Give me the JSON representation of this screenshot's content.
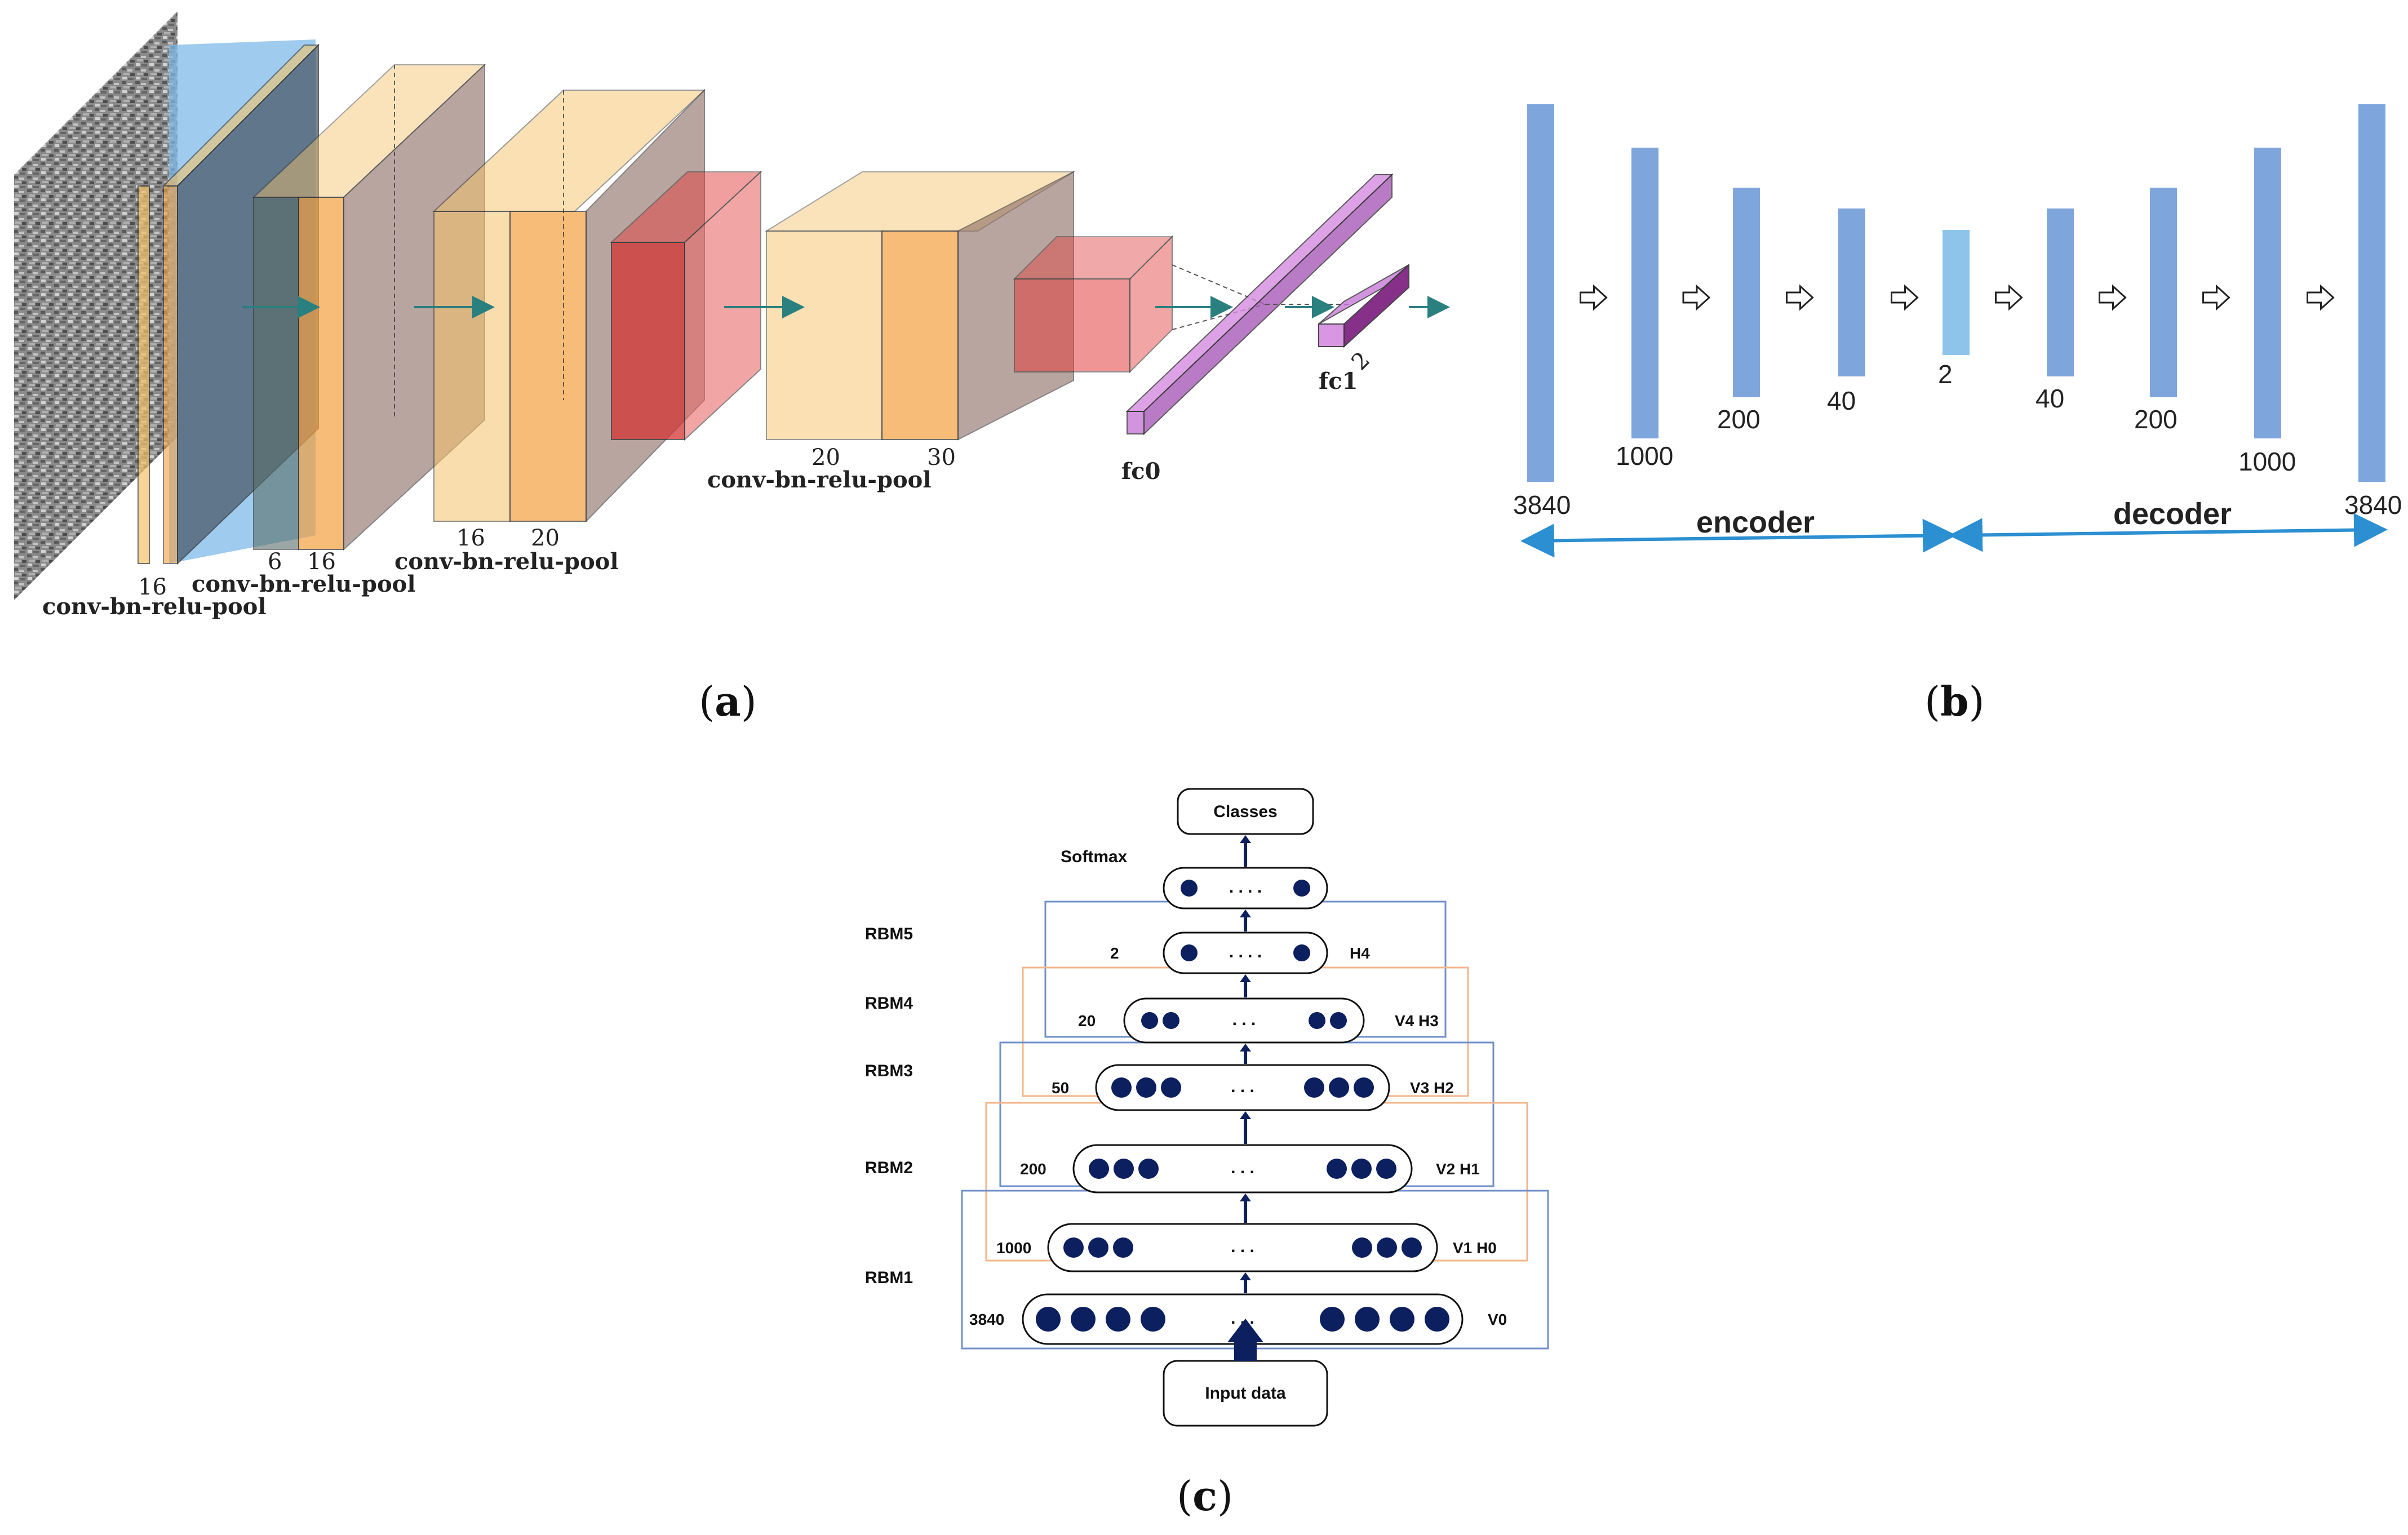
{
  "panel_a": {
    "caption_letter": "a",
    "blocks": [
      {
        "dims": [
          "16"
        ],
        "label": "conv-bn-relu-pool"
      },
      {
        "dims": [
          "6",
          "16"
        ],
        "label": "conv-bn-relu-pool"
      },
      {
        "dims": [
          "16",
          "20"
        ],
        "label": "conv-bn-relu-pool"
      },
      {
        "dims": [
          "20",
          "30"
        ],
        "label": "conv-bn-relu-pool"
      }
    ],
    "fc0_label": "fc0",
    "fc1_label": "fc1",
    "fc1_dim": "2",
    "colors": {
      "input_blue": "#7db9e8",
      "yellow": "#f6c36a",
      "orange": "#f3a040",
      "red": "#e24040",
      "purple": "#c97ad8",
      "dark_purple": "#7a1a7e",
      "arrow": "#2a7f7f"
    }
  },
  "panel_b": {
    "caption_letter": "b",
    "layers": [
      "3840",
      "1000",
      "200",
      "40",
      "2",
      "40",
      "200",
      "1000",
      "3840"
    ],
    "encoder_label": "encoder",
    "decoder_label": "decoder",
    "colors": {
      "bar": "#7fa6dc",
      "bottleneck": "#8fc4ea",
      "arrow": "#2b8fd1"
    }
  },
  "panel_c": {
    "caption_letter": "c",
    "classes_label": "Classes",
    "softmax_label": "Softmax",
    "input_label": "Input data",
    "dots": ". . . .",
    "dots3": ". . .",
    "rbm_labels": [
      "RBM5",
      "RBM4",
      "RBM3",
      "RBM2",
      "RBM1"
    ],
    "layers": [
      {
        "size": "2",
        "tag": "H4"
      },
      {
        "size": "20",
        "tag": "V4 H3"
      },
      {
        "size": "50",
        "tag": "V3 H2"
      },
      {
        "size": "200",
        "tag": "V2 H1"
      },
      {
        "size": "1000",
        "tag": "V1 H0"
      },
      {
        "size": "3840",
        "tag": "V0"
      }
    ],
    "colors": {
      "node": "#0c1f5e",
      "blue_box": "#6f8fc9",
      "orange_box": "#f2b58a"
    }
  }
}
